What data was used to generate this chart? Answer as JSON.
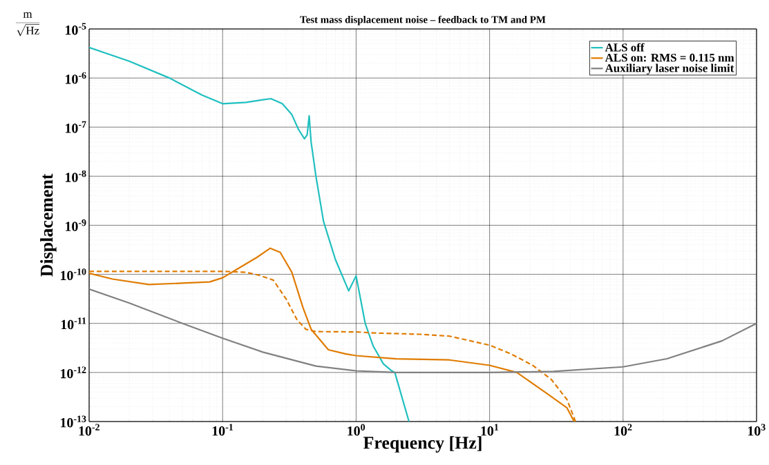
{
  "chart_data": {
    "type": "line",
    "title": "Test mass displacement noise – feedback to TM and PM",
    "xlabel": "Frequency [Hz]",
    "ylabel": "Displacement",
    "annotations": [
      "\\frac{\\mathrm{m}}{\\sqrt{\\mathrm{Hz}}}"
    ],
    "log": "xy",
    "grid": true,
    "legend": "top right",
    "xlim": [
      0.01,
      1000
    ],
    "ylim": [
      1e-13,
      1e-05
    ],
    "xticks": [
      {
        "value": 0.01,
        "label": "10$^{-2}$"
      },
      {
        "value": 0.1,
        "label": "10$^{-1}$"
      },
      {
        "value": 1,
        "label": "10$^{0}$"
      },
      {
        "value": 10,
        "label": "10$^{1}$"
      },
      {
        "value": 100,
        "label": "10$^{2}$"
      },
      {
        "value": 1000,
        "label": "10$^{3}$"
      }
    ],
    "yticks": [
      {
        "value": 1e-13,
        "label": "10$^{-13}$"
      },
      {
        "value": 1e-12,
        "label": "10$^{-12}$"
      },
      {
        "value": 1e-11,
        "label": "10$^{-11}$"
      },
      {
        "value": 1e-10,
        "label": "10$^{-10}$"
      },
      {
        "value": 1e-09,
        "label": "10$^{-9}$"
      },
      {
        "value": 1e-08,
        "label": "10$^{-8}$"
      },
      {
        "value": 1e-07,
        "label": "10$^{-7}$"
      },
      {
        "value": 1e-06,
        "label": "10$^{-6}$"
      },
      {
        "value": 1e-05,
        "label": "10$^{-5}$"
      }
    ],
    "series": [
      {
        "name": "ALS off",
        "color": "#1fbfbf",
        "line_style": "solid",
        "x": [
          0.01,
          0.02,
          0.04,
          0.07,
          0.1,
          0.15,
          0.2,
          0.23,
          0.28,
          0.33,
          0.37,
          0.41,
          0.43,
          0.445,
          0.46,
          0.5,
          0.57,
          0.7,
          0.88,
          1.0,
          1.17,
          1.34,
          1.6,
          1.83,
          1.95,
          2.49
        ],
        "values": [
          4.2e-06,
          2.2e-06,
          1e-06,
          4.5e-07,
          3e-07,
          3.2e-07,
          3.6e-07,
          3.8e-07,
          3e-07,
          1.8e-07,
          9e-08,
          5.8e-08,
          7e-08,
          1.7e-07,
          5e-08,
          1e-08,
          1.2e-09,
          2e-10,
          4.6e-11,
          9.3e-11,
          1e-11,
          3.5e-12,
          1.5e-12,
          1.1e-12,
          1e-12,
          1e-13
        ]
      },
      {
        "name": "ALS on: RMS = 0.115 nm",
        "color": "#e07b00",
        "line_style": "solid",
        "x": [
          0.01,
          0.015,
          0.028,
          0.05,
          0.08,
          0.1,
          0.13,
          0.18,
          0.227,
          0.27,
          0.33,
          0.4,
          0.46,
          0.62,
          0.83,
          1.0,
          2,
          5,
          10,
          16,
          27,
          38,
          43
        ],
        "values": [
          1.05e-10,
          8e-11,
          6.2e-11,
          6.6e-11,
          7e-11,
          8.5e-11,
          1.3e-10,
          2.2e-10,
          3.4e-10,
          2.8e-10,
          1.1e-10,
          2.1e-11,
          7.6e-12,
          2.9e-12,
          2.4e-12,
          2.2e-12,
          1.9e-12,
          1.8e-12,
          1.4e-12,
          1e-12,
          3.7e-13,
          1.9e-13,
          1e-13
        ]
      },
      {
        "color": "#e07b00",
        "line_style": "dashed",
        "x": [
          0.01,
          0.1,
          0.15,
          0.19,
          0.24,
          0.3,
          0.36,
          0.42,
          0.5,
          1.0,
          1.34,
          3,
          5,
          10,
          14.4,
          21,
          29,
          38,
          44
        ],
        "values": [
          1.15e-10,
          1.15e-10,
          1.1e-10,
          9.5e-11,
          7.6e-11,
          3.1e-11,
          1.2e-11,
          7.6e-12,
          6.8e-12,
          6.7e-12,
          6.4e-12,
          6e-12,
          5.5e-12,
          3.6e-12,
          2.4e-12,
          1.4e-12,
          7.2e-13,
          2.8e-13,
          1e-13
        ]
      },
      {
        "name": "Auxiliary laser noise limit",
        "color": "#808080",
        "line_style": "solid",
        "x": [
          0.01,
          0.02,
          0.05,
          0.1,
          0.2,
          0.5,
          1,
          2,
          10,
          30,
          100,
          213,
          550,
          1000
        ],
        "values": [
          5e-11,
          2.6e-11,
          1e-11,
          5e-12,
          2.6e-12,
          1.35e-12,
          1.08e-12,
          1e-12,
          1e-12,
          1.05e-12,
          1.3e-12,
          1.9e-12,
          4.4e-12,
          1e-11
        ]
      }
    ]
  }
}
